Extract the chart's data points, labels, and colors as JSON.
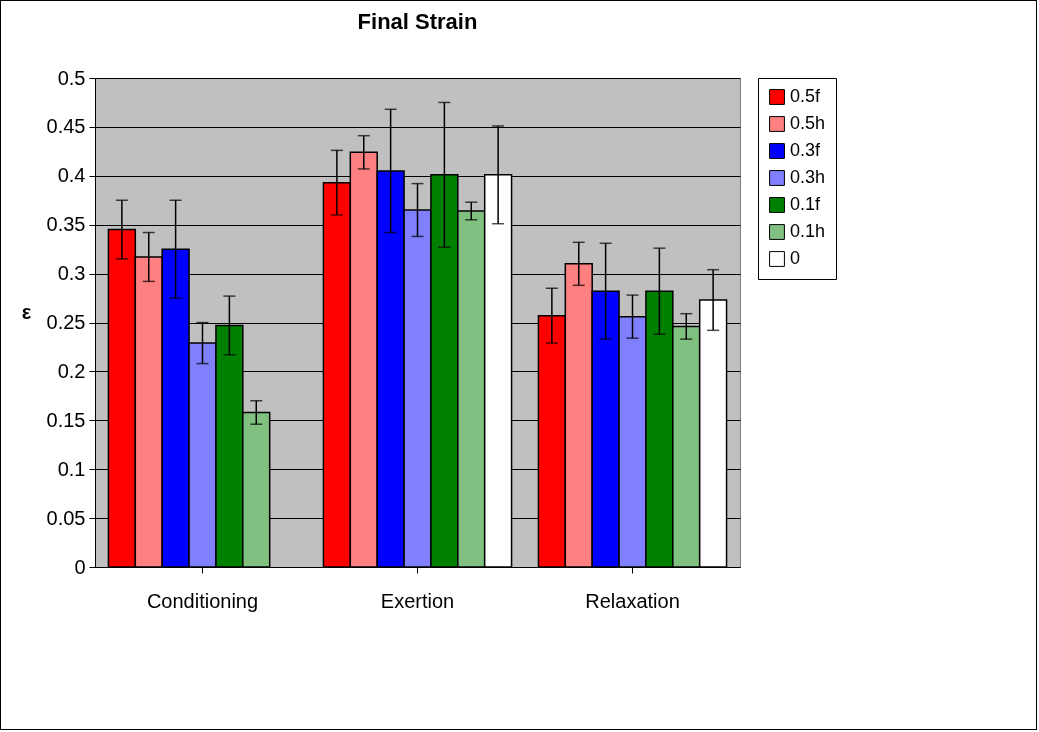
{
  "chart_data": {
    "type": "bar",
    "title": "Final Strain",
    "ylabel": "ε",
    "categories": [
      "Conditioning",
      "Exertion",
      "Relaxation"
    ],
    "ylim": [
      0,
      0.5
    ],
    "yticks": [
      0,
      0.05,
      0.1,
      0.15,
      0.2,
      0.25,
      0.3,
      0.35,
      0.4,
      0.45,
      0.5
    ],
    "grid": "y",
    "legend": "right",
    "series": [
      {
        "name": "0.5f",
        "color": "#ff0000",
        "values": [
          0.345,
          0.393,
          0.257
        ],
        "errors": [
          0.03,
          0.033,
          0.028
        ]
      },
      {
        "name": "0.5h",
        "color": "#ff8080",
        "values": [
          0.317,
          0.424,
          0.31
        ],
        "errors": [
          0.025,
          0.017,
          0.022
        ]
      },
      {
        "name": "0.3f",
        "color": "#0000ff",
        "values": [
          0.325,
          0.405,
          0.282
        ],
        "errors": [
          0.05,
          0.063,
          0.049
        ]
      },
      {
        "name": "0.3h",
        "color": "#8080ff",
        "values": [
          0.229,
          0.365,
          0.256
        ],
        "errors": [
          0.021,
          0.027,
          0.022
        ]
      },
      {
        "name": "0.1f",
        "color": "#008000",
        "values": [
          0.247,
          0.401,
          0.282
        ],
        "errors": [
          0.03,
          0.074,
          0.044
        ]
      },
      {
        "name": "0.1h",
        "color": "#80c080",
        "values": [
          0.158,
          0.364,
          0.246
        ],
        "errors": [
          0.012,
          0.009,
          0.013
        ]
      },
      {
        "name": "0",
        "color": "#ffffff",
        "values": [
          null,
          0.401,
          0.273
        ],
        "errors": [
          null,
          0.05,
          0.031
        ]
      }
    ]
  }
}
